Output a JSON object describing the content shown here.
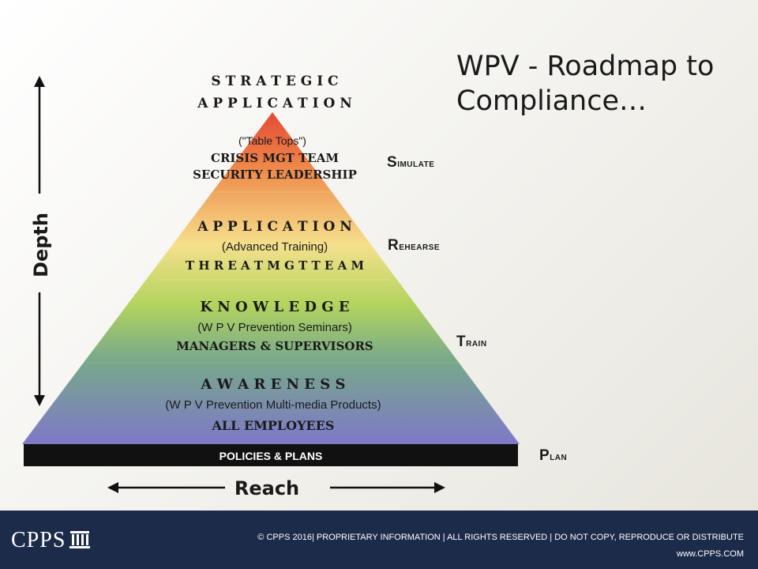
{
  "slide": {
    "title": "WPV - Roadmap to\nCompliance…"
  },
  "axes": {
    "vertical_label": "Depth",
    "horizontal_label": "Reach"
  },
  "pyramid": {
    "apex_title": [
      "S T R A T E G I C",
      "A P P L I C A T I O N"
    ],
    "tiers": [
      {
        "id": "strategic",
        "lines": [
          "(\"Table Tops\")",
          "CRISIS MGT TEAM",
          "SECURITY LEADERSHIP"
        ]
      },
      {
        "id": "application",
        "lines": [
          "A P P L I C A T I O N",
          "(Advanced Training)",
          "T H R E A T  M G T  T E A M"
        ]
      },
      {
        "id": "knowledge",
        "lines": [
          "K N O W L E D G E",
          "(W P V Prevention Seminars)",
          "MANAGERS & SUPERVISORS"
        ]
      },
      {
        "id": "awareness",
        "lines": [
          "A W A R E N E S S",
          "(W P V Prevention Multi-media Products)",
          "ALL EMPLOYEES"
        ]
      }
    ],
    "base": "POLICIES & PLANS"
  },
  "stages": [
    "Simulate",
    "Rehearse",
    "Train",
    "Plan"
  ],
  "footer": {
    "logo": "CPPS",
    "copyright": "© CPPS 2016| PROPRIETARY INFORMATION | ALL RIGHTS RESERVED | DO NOT COPY, REPRODUCE OR DISTRIBUTE",
    "website": "www.CPPS.COM"
  },
  "colors": {
    "pyramid_top": "#e5513a",
    "pyramid_orange": "#f0a04a",
    "pyramid_yellow": "#f3e58a",
    "pyramid_green": "#a9cf5a",
    "pyramid_teal": "#6a9a9a",
    "pyramid_bottom": "#7d77c4",
    "base_bar": "#111111",
    "footer_bg": "#1d2b4b"
  }
}
